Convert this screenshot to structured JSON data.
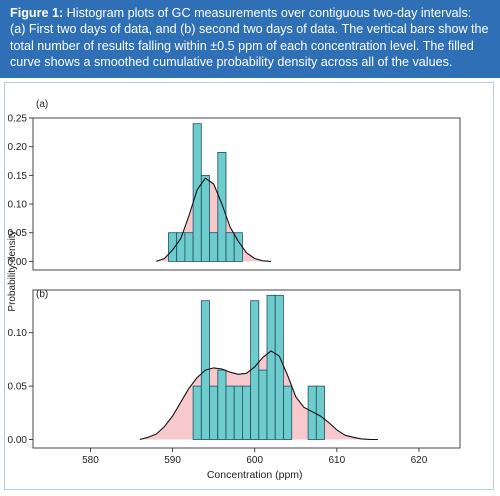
{
  "caption": {
    "label": "Figure 1:",
    "text": " Histogram plots of GC measurements over contiguous two-day intervals: (a) First two days of data, and (b) second two days of data. The vertical bars show the total number of results falling within ±0.5 ppm of each concentration level. The filled curve shows a smoothed cumulative probability density across all of the values."
  },
  "colors": {
    "caption_bg": "#2e6fb6",
    "bar_fill": "#6fcccc",
    "bar_stroke": "#1f4f63",
    "density_fill": "#f7c9cc",
    "curve": "#111111",
    "axis": "#333333"
  },
  "chart_data": [
    {
      "type": "bar",
      "panel_label": "(a)",
      "xlabel": "",
      "ylabel": "Probability density",
      "xlim": [
        573,
        625
      ],
      "ylim": [
        -0.015,
        0.25
      ],
      "yticks": [
        "0.00",
        "0.05",
        "0.10",
        "0.15",
        "0.20",
        "0.25"
      ],
      "ytick_values": [
        0,
        0.05,
        0.1,
        0.15,
        0.2,
        0.25
      ],
      "grid": false,
      "bars": {
        "x": [
          590,
          591,
          592,
          593,
          594,
          595,
          596,
          597,
          598
        ],
        "height": [
          0.05,
          0.05,
          0.05,
          0.24,
          0.15,
          0.05,
          0.19,
          0.05,
          0.05
        ]
      },
      "density": {
        "x": [
          588,
          589,
          590,
          591,
          592,
          593,
          594,
          595,
          596,
          597,
          598,
          599,
          600,
          601,
          602
        ],
        "y": [
          0.0,
          0.005,
          0.02,
          0.04,
          0.08,
          0.125,
          0.145,
          0.135,
          0.1,
          0.06,
          0.035,
          0.015,
          0.005,
          0.001,
          0.0
        ]
      }
    },
    {
      "type": "bar",
      "panel_label": "(b)",
      "xlabel": "Concentration (ppm)",
      "ylabel": "",
      "xlim": [
        573,
        625
      ],
      "ylim": [
        -0.008,
        0.14
      ],
      "yticks": [
        "0.00",
        "0.05",
        "0.10"
      ],
      "ytick_values": [
        0,
        0.05,
        0.1
      ],
      "xticks": [
        "580",
        "590",
        "600",
        "610",
        "620"
      ],
      "xtick_values": [
        580,
        590,
        600,
        610,
        620
      ],
      "grid": false,
      "bars": {
        "x": [
          593,
          594,
          595,
          596,
          597,
          598,
          599,
          600,
          601,
          602,
          603,
          604,
          607,
          608
        ],
        "height": [
          0.05,
          0.13,
          0.05,
          0.065,
          0.05,
          0.05,
          0.05,
          0.13,
          0.065,
          0.135,
          0.135,
          0.05,
          0.05,
          0.05
        ]
      },
      "density": {
        "x": [
          586,
          587,
          588,
          589,
          590,
          591,
          592,
          593,
          594,
          595,
          596,
          597,
          598,
          599,
          600,
          601,
          602,
          603,
          604,
          605,
          606,
          607,
          608,
          609,
          610,
          611,
          612,
          613,
          614,
          615
        ],
        "y": [
          0.0,
          0.002,
          0.005,
          0.012,
          0.022,
          0.035,
          0.048,
          0.058,
          0.065,
          0.067,
          0.066,
          0.063,
          0.061,
          0.062,
          0.068,
          0.077,
          0.083,
          0.078,
          0.06,
          0.04,
          0.03,
          0.026,
          0.022,
          0.016,
          0.009,
          0.004,
          0.002,
          0.0005,
          0.0001,
          0.0
        ]
      }
    }
  ]
}
